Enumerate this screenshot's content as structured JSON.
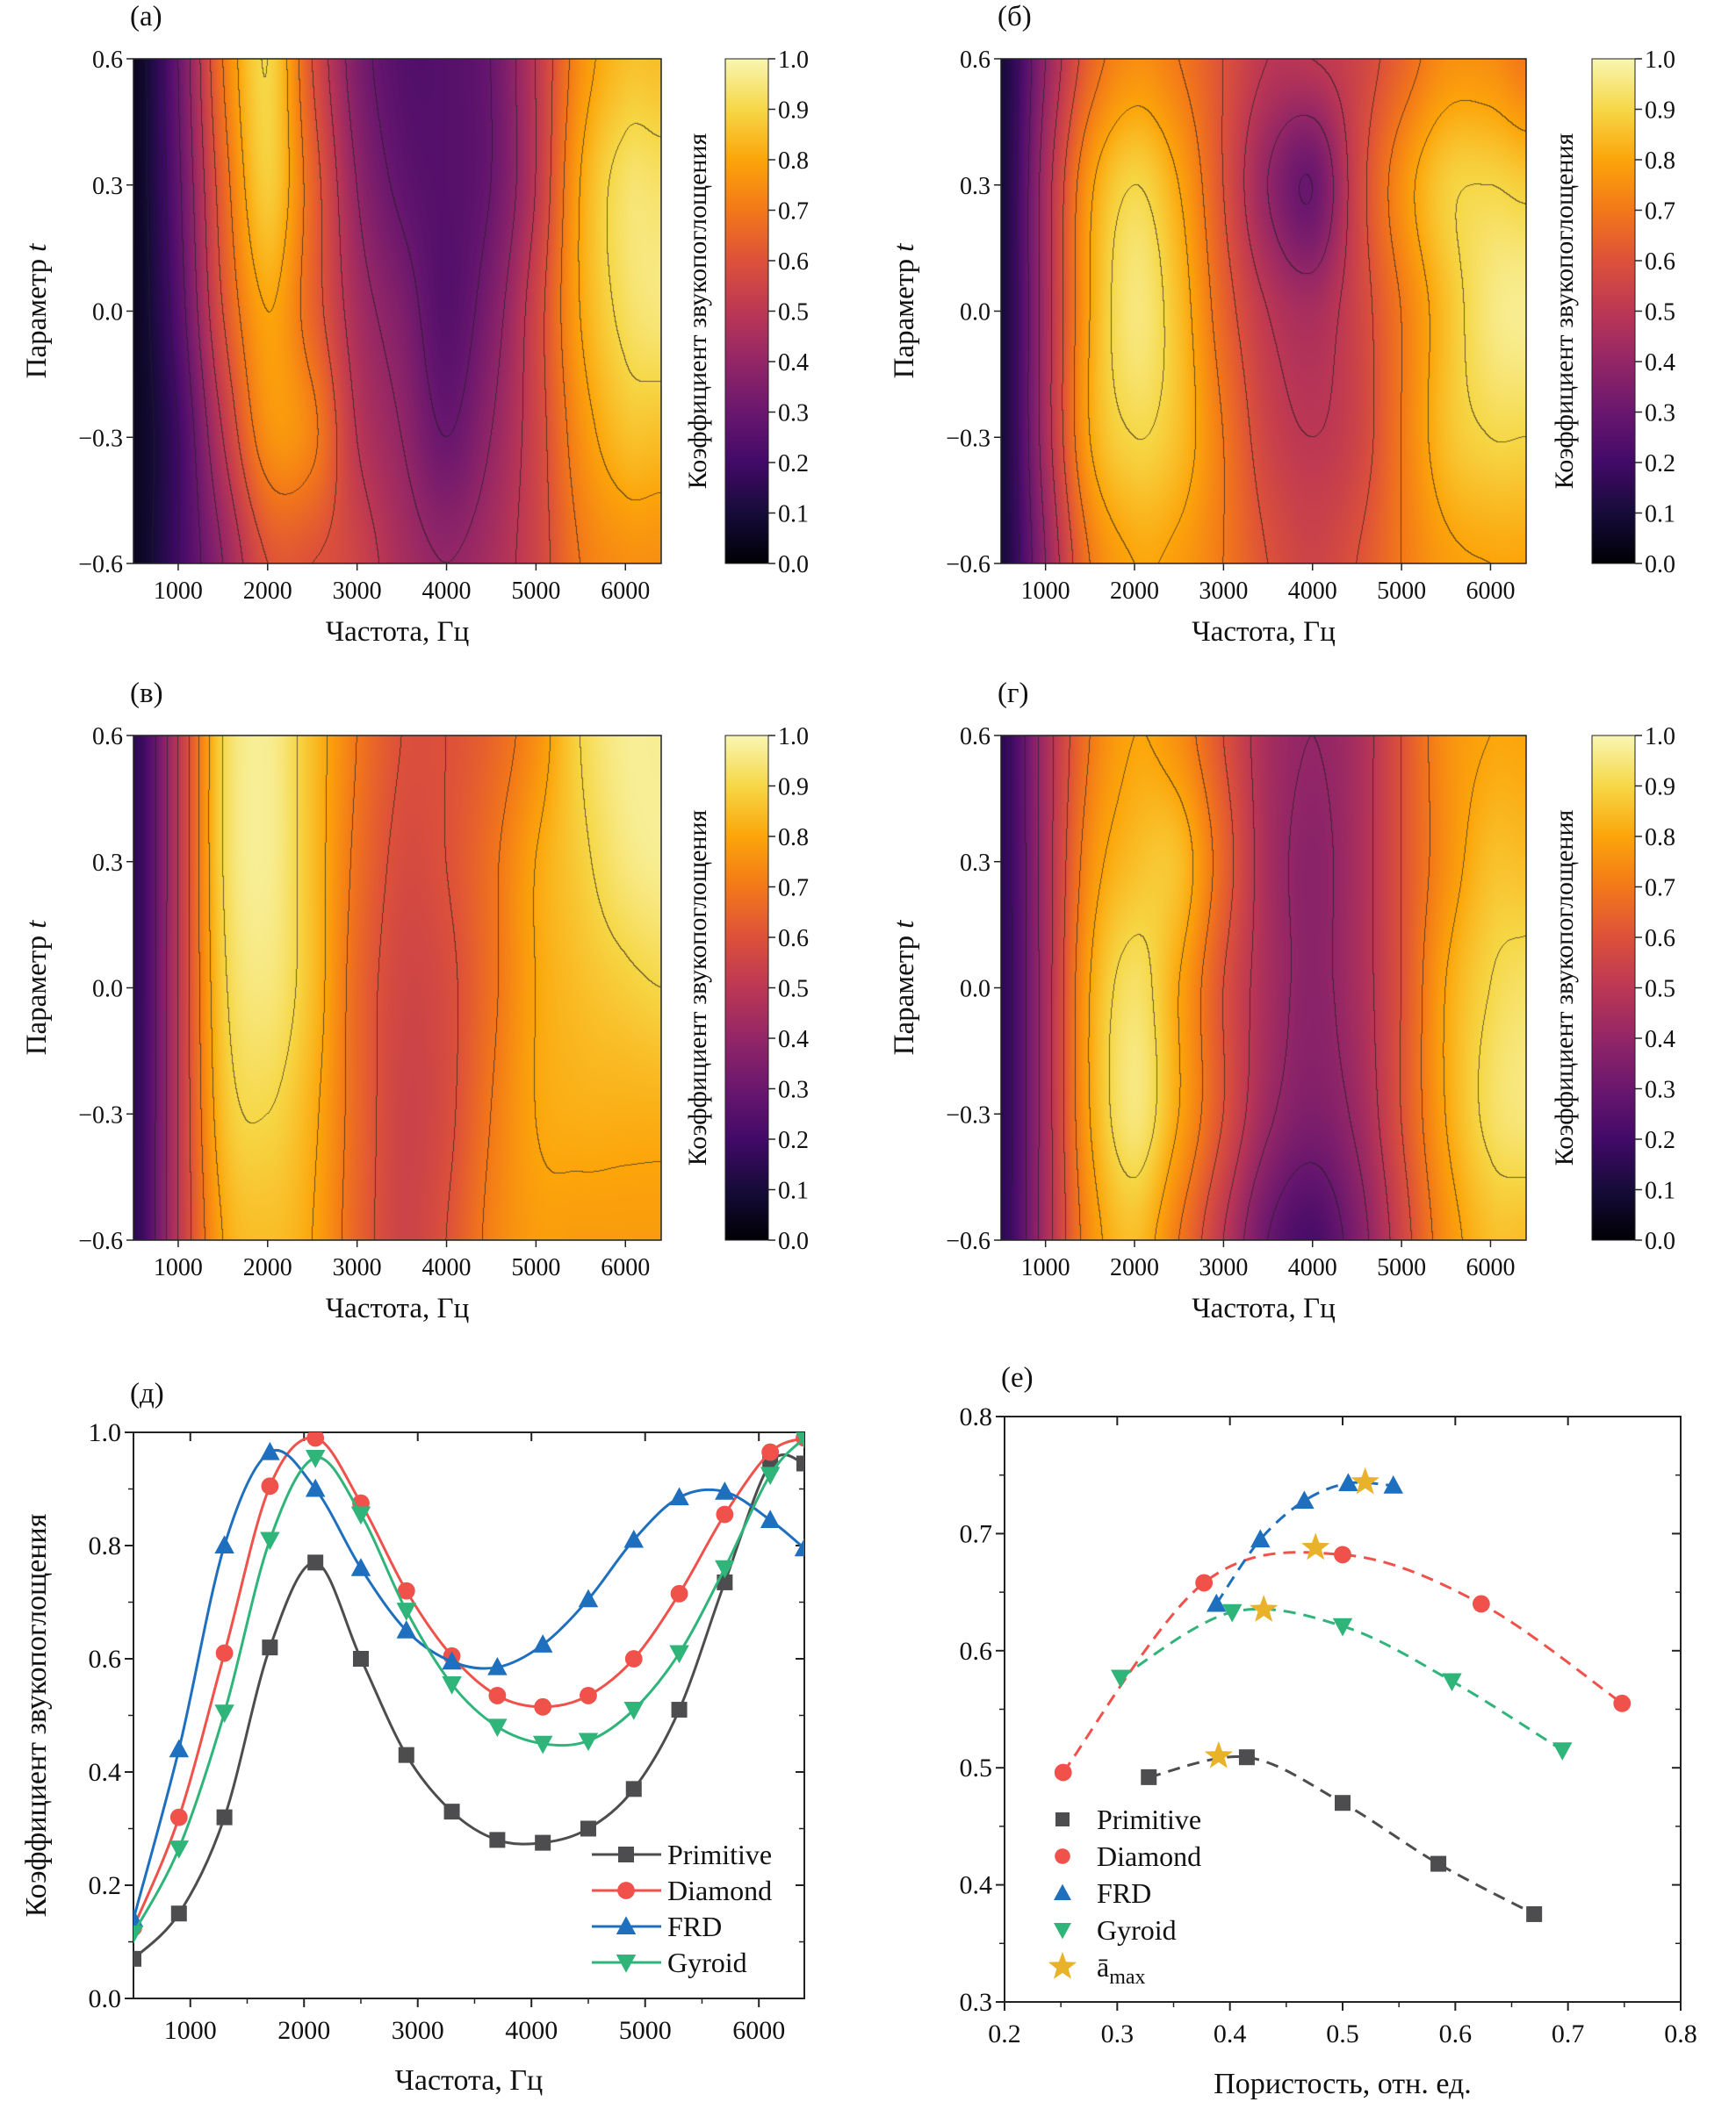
{
  "chart_data": [
    {
      "type": "heatmap",
      "panel_label": "(а)",
      "xlabel": "Частота, Гц",
      "ylabel": "Параметр",
      "ylabel_var": "t",
      "colorbar_label": "Коэффициент звукопоглощения",
      "colorbar_ticks": [
        "0.0",
        "0.1",
        "0.2",
        "0.3",
        "0.4",
        "0.5",
        "0.6",
        "0.7",
        "0.8",
        "0.9",
        "1.0"
      ],
      "xlim": [
        500,
        6400
      ],
      "ylim": [
        -0.6,
        0.6
      ],
      "zlim": [
        0,
        1
      ],
      "xticks": [
        "1000",
        "2000",
        "3000",
        "4000",
        "5000",
        "6000"
      ],
      "yticks": [
        "−0.6",
        "−0.3",
        "0.0",
        "0.3",
        "0.6"
      ],
      "colormap": "inferno",
      "contour_step": 0.1,
      "x": [
        500,
        1000,
        1500,
        2000,
        2500,
        3000,
        3500,
        4000,
        4500,
        5000,
        5500,
        6000,
        6400
      ],
      "y": [
        0.6,
        0.3,
        0.0,
        -0.3,
        -0.6
      ],
      "z": [
        [
          0.05,
          0.3,
          0.7,
          0.9,
          0.6,
          0.35,
          0.25,
          0.25,
          0.3,
          0.5,
          0.75,
          0.85,
          0.85
        ],
        [
          0.05,
          0.28,
          0.65,
          0.88,
          0.65,
          0.4,
          0.28,
          0.25,
          0.3,
          0.5,
          0.8,
          0.93,
          0.93
        ],
        [
          0.05,
          0.25,
          0.6,
          0.8,
          0.65,
          0.45,
          0.35,
          0.25,
          0.35,
          0.55,
          0.8,
          0.92,
          0.95
        ],
        [
          0.05,
          0.2,
          0.5,
          0.75,
          0.72,
          0.5,
          0.4,
          0.3,
          0.4,
          0.55,
          0.75,
          0.85,
          0.85
        ],
        [
          0.05,
          0.2,
          0.4,
          0.6,
          0.6,
          0.55,
          0.45,
          0.4,
          0.45,
          0.55,
          0.7,
          0.75,
          0.75
        ]
      ]
    },
    {
      "type": "heatmap",
      "panel_label": "(б)",
      "xlabel": "Частота, Гц",
      "ylabel": "Параметр",
      "ylabel_var": "t",
      "colorbar_label": "Коэффициент звукопоглощения",
      "colorbar_ticks": [
        "0.0",
        "0.1",
        "0.2",
        "0.3",
        "0.4",
        "0.5",
        "0.6",
        "0.7",
        "0.8",
        "0.9",
        "1.0"
      ],
      "xlim": [
        500,
        6400
      ],
      "ylim": [
        -0.6,
        0.6
      ],
      "zlim": [
        0,
        1
      ],
      "xticks": [
        "1000",
        "2000",
        "3000",
        "4000",
        "5000",
        "6000"
      ],
      "yticks": [
        "−0.6",
        "−0.3",
        "0.0",
        "0.3",
        "0.6"
      ],
      "colormap": "inferno",
      "contour_step": 0.1,
      "x": [
        500,
        1000,
        1500,
        2000,
        2500,
        3000,
        3500,
        4000,
        4500,
        5000,
        5500,
        6000,
        6400
      ],
      "y": [
        0.6,
        0.3,
        0.0,
        -0.3,
        -0.6
      ],
      "z": [
        [
          0.1,
          0.4,
          0.65,
          0.75,
          0.7,
          0.6,
          0.5,
          0.5,
          0.55,
          0.65,
          0.75,
          0.75,
          0.7
        ],
        [
          0.1,
          0.45,
          0.78,
          0.9,
          0.8,
          0.6,
          0.4,
          0.3,
          0.55,
          0.75,
          0.88,
          0.9,
          0.88
        ],
        [
          0.1,
          0.45,
          0.8,
          0.95,
          0.85,
          0.65,
          0.5,
          0.45,
          0.55,
          0.7,
          0.85,
          0.95,
          0.97
        ],
        [
          0.1,
          0.45,
          0.8,
          0.9,
          0.85,
          0.7,
          0.55,
          0.5,
          0.55,
          0.7,
          0.85,
          0.9,
          0.9
        ],
        [
          0.1,
          0.4,
          0.7,
          0.8,
          0.78,
          0.7,
          0.6,
          0.55,
          0.6,
          0.7,
          0.78,
          0.8,
          0.8
        ]
      ]
    },
    {
      "type": "heatmap",
      "panel_label": "(в)",
      "xlabel": "Частота, Гц",
      "ylabel": "Параметр",
      "ylabel_var": "t",
      "colorbar_label": "Коэффициент звукопоглощения",
      "colorbar_ticks": [
        "0.0",
        "0.1",
        "0.2",
        "0.3",
        "0.4",
        "0.5",
        "0.6",
        "0.7",
        "0.8",
        "0.9",
        "1.0"
      ],
      "xlim": [
        500,
        6400
      ],
      "ylim": [
        -0.6,
        0.6
      ],
      "zlim": [
        0,
        1
      ],
      "xticks": [
        "1000",
        "2000",
        "3000",
        "4000",
        "5000",
        "6000"
      ],
      "yticks": [
        "−0.6",
        "−0.3",
        "0.0",
        "0.3",
        "0.6"
      ],
      "colormap": "inferno",
      "contour_step": 0.1,
      "x": [
        500,
        1000,
        1500,
        2000,
        2500,
        3000,
        3500,
        4000,
        4500,
        5000,
        5500,
        6000,
        6400
      ],
      "y": [
        0.6,
        0.3,
        0.0,
        -0.3,
        -0.6
      ],
      "z": [
        [
          0.15,
          0.5,
          0.9,
          0.97,
          0.85,
          0.7,
          0.6,
          0.6,
          0.65,
          0.75,
          0.9,
          0.97,
          0.97
        ],
        [
          0.15,
          0.5,
          0.9,
          0.97,
          0.85,
          0.68,
          0.58,
          0.6,
          0.68,
          0.8,
          0.88,
          0.95,
          0.97
        ],
        [
          0.15,
          0.5,
          0.88,
          0.95,
          0.85,
          0.66,
          0.56,
          0.58,
          0.68,
          0.8,
          0.85,
          0.88,
          0.9
        ],
        [
          0.15,
          0.5,
          0.85,
          0.9,
          0.82,
          0.66,
          0.55,
          0.58,
          0.7,
          0.8,
          0.82,
          0.82,
          0.82
        ],
        [
          0.15,
          0.5,
          0.8,
          0.85,
          0.8,
          0.65,
          0.55,
          0.6,
          0.72,
          0.78,
          0.78,
          0.78,
          0.78
        ]
      ]
    },
    {
      "type": "heatmap",
      "panel_label": "(г)",
      "xlabel": "Частота, Гц",
      "ylabel": "Параметр",
      "ylabel_var": "t",
      "colorbar_label": "Коэффициент звукопоглощения",
      "colorbar_ticks": [
        "0.0",
        "0.1",
        "0.2",
        "0.3",
        "0.4",
        "0.5",
        "0.6",
        "0.7",
        "0.8",
        "0.9",
        "1.0"
      ],
      "xlim": [
        500,
        6400
      ],
      "ylim": [
        -0.6,
        0.6
      ],
      "zlim": [
        0,
        1
      ],
      "xticks": [
        "1000",
        "2000",
        "3000",
        "4000",
        "5000",
        "6000"
      ],
      "yticks": [
        "−0.6",
        "−0.3",
        "0.0",
        "0.3",
        "0.6"
      ],
      "colormap": "inferno",
      "contour_step": 0.1,
      "x": [
        500,
        1000,
        1500,
        2000,
        2500,
        3000,
        3500,
        4000,
        4500,
        5000,
        5500,
        6000,
        6400
      ],
      "y": [
        0.6,
        0.3,
        0.0,
        -0.3,
        -0.6
      ],
      "z": [
        [
          0.15,
          0.45,
          0.7,
          0.8,
          0.75,
          0.6,
          0.45,
          0.4,
          0.45,
          0.6,
          0.75,
          0.8,
          0.8
        ],
        [
          0.15,
          0.45,
          0.75,
          0.85,
          0.85,
          0.65,
          0.45,
          0.38,
          0.45,
          0.6,
          0.75,
          0.85,
          0.85
        ],
        [
          0.15,
          0.45,
          0.8,
          0.93,
          0.8,
          0.6,
          0.45,
          0.38,
          0.45,
          0.6,
          0.8,
          0.9,
          0.93
        ],
        [
          0.15,
          0.45,
          0.8,
          0.95,
          0.8,
          0.6,
          0.42,
          0.35,
          0.42,
          0.6,
          0.8,
          0.92,
          0.95
        ],
        [
          0.15,
          0.45,
          0.75,
          0.85,
          0.7,
          0.5,
          0.3,
          0.22,
          0.35,
          0.55,
          0.75,
          0.85,
          0.85
        ]
      ]
    },
    {
      "type": "line",
      "panel_label": "(д)",
      "xlabel": "Частота, Гц",
      "ylabel": "Коэффициент звукопоглощения",
      "xlim": [
        500,
        6400
      ],
      "ylim": [
        0,
        1
      ],
      "xticks": [
        "1000",
        "2000",
        "3000",
        "4000",
        "5000",
        "6000"
      ],
      "yticks": [
        "0.0",
        "0.2",
        "0.4",
        "0.6",
        "0.8",
        "1.0"
      ],
      "legend_position": "bottom-right",
      "x": [
        500,
        900,
        1300,
        1700,
        2100,
        2500,
        2900,
        3300,
        3700,
        4100,
        4500,
        4900,
        5300,
        5700,
        6100,
        6400
      ],
      "series": [
        {
          "name": "Primitive",
          "color": "#4d4d4f",
          "marker": "square",
          "values": [
            0.07,
            0.15,
            0.32,
            0.62,
            0.77,
            0.6,
            0.43,
            0.33,
            0.28,
            0.275,
            0.3,
            0.37,
            0.51,
            0.735,
            0.945,
            0.945
          ]
        },
        {
          "name": "Diamond",
          "color": "#f0514a",
          "marker": "circle",
          "values": [
            0.125,
            0.32,
            0.61,
            0.905,
            0.99,
            0.875,
            0.72,
            0.605,
            0.535,
            0.515,
            0.535,
            0.6,
            0.715,
            0.855,
            0.965,
            0.99
          ]
        },
        {
          "name": "FRD",
          "color": "#1f6fbf",
          "marker": "triangle-up",
          "values": [
            0.14,
            0.44,
            0.8,
            0.965,
            0.9,
            0.76,
            0.65,
            0.595,
            0.585,
            0.625,
            0.705,
            0.81,
            0.885,
            0.895,
            0.845,
            0.795
          ]
        },
        {
          "name": "Gyroid",
          "color": "#2fb47a",
          "marker": "triangle-down",
          "values": [
            0.115,
            0.265,
            0.505,
            0.81,
            0.955,
            0.855,
            0.685,
            0.555,
            0.48,
            0.45,
            0.455,
            0.51,
            0.61,
            0.76,
            0.925,
            0.99
          ]
        }
      ]
    },
    {
      "type": "scatter",
      "panel_label": "(е)",
      "xlabel": "Пористость, отн. ед.",
      "ylabel": "",
      "xlim": [
        0.2,
        0.8
      ],
      "ylim": [
        0.3,
        0.8
      ],
      "xticks": [
        "0.2",
        "0.3",
        "0.4",
        "0.5",
        "0.6",
        "0.7",
        "0.8"
      ],
      "yticks": [
        "0.3",
        "0.4",
        "0.5",
        "0.6",
        "0.7",
        "0.8"
      ],
      "legend_position": "bottom-left",
      "series": [
        {
          "name": "Primitive",
          "color": "#4d4d4f",
          "marker": "square",
          "fit": "dashed",
          "points": [
            [
              0.328,
              0.492
            ],
            [
              0.415,
              0.509
            ],
            [
              0.5,
              0.47
            ],
            [
              0.585,
              0.418
            ],
            [
              0.67,
              0.375
            ]
          ]
        },
        {
          "name": "Diamond",
          "color": "#f0514a",
          "marker": "circle",
          "fit": "dashed",
          "points": [
            [
              0.252,
              0.496
            ],
            [
              0.377,
              0.658
            ],
            [
              0.5,
              0.682
            ],
            [
              0.623,
              0.64
            ],
            [
              0.748,
              0.555
            ]
          ]
        },
        {
          "name": "FRD",
          "color": "#1f6fbf",
          "marker": "triangle-up",
          "fit": "dashed",
          "points": [
            [
              0.388,
              0.64
            ],
            [
              0.427,
              0.695
            ],
            [
              0.466,
              0.728
            ],
            [
              0.505,
              0.743
            ],
            [
              0.545,
              0.741
            ]
          ]
        },
        {
          "name": "Gyroid",
          "color": "#2fb47a",
          "marker": "triangle-down",
          "fit": "dashed",
          "points": [
            [
              0.303,
              0.577
            ],
            [
              0.402,
              0.633
            ],
            [
              0.5,
              0.621
            ],
            [
              0.597,
              0.574
            ],
            [
              0.695,
              0.515
            ]
          ]
        },
        {
          "name": "ā",
          "name_sub": "max",
          "color": "#e8b22a",
          "marker": "star",
          "points": [
            [
              0.39,
              0.51
            ],
            [
              0.476,
              0.688
            ],
            [
              0.52,
              0.744
            ],
            [
              0.43,
              0.635
            ]
          ]
        }
      ]
    }
  ]
}
